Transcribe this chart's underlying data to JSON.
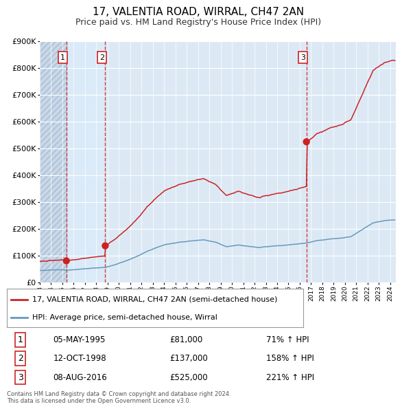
{
  "title": "17, VALENTIA ROAD, WIRRAL, CH47 2AN",
  "subtitle": "Price paid vs. HM Land Registry's House Price Index (HPI)",
  "ylim": [
    0,
    900000
  ],
  "yticks": [
    0,
    100000,
    200000,
    300000,
    400000,
    500000,
    600000,
    700000,
    800000,
    900000
  ],
  "ytick_labels": [
    "£0",
    "£100K",
    "£200K",
    "£300K",
    "£400K",
    "£500K",
    "£600K",
    "£700K",
    "£800K",
    "£900K"
  ],
  "xmin": 1993,
  "xmax": 2024.5,
  "plot_bg_color": "#dce9f5",
  "hatch_bg_color": "#c8d8ea",
  "grid_color": "#ffffff",
  "red_line_color": "#cc2222",
  "blue_line_color": "#6699bb",
  "sale_marker_color": "#cc2222",
  "vline_color": "#cc2222",
  "num_box_color": "#cc2222",
  "transactions": [
    {
      "label": "1",
      "date_num": 1995.35,
      "price": 81000,
      "date_str": "05-MAY-1995",
      "pct_str": "71% ↑ HPI",
      "price_str": "£81,000"
    },
    {
      "label": "2",
      "date_num": 1998.79,
      "price": 137000,
      "date_str": "12-OCT-1998",
      "pct_str": "158% ↑ HPI",
      "price_str": "£137,000"
    },
    {
      "label": "3",
      "date_num": 2016.59,
      "price": 525000,
      "date_str": "08-AUG-2016",
      "pct_str": "221% ↑ HPI",
      "price_str": "£525,000"
    }
  ],
  "legend_entries": [
    "17, VALENTIA ROAD, WIRRAL, CH47 2AN (semi-detached house)",
    "HPI: Average price, semi-detached house, Wirral"
  ],
  "footer_line1": "Contains HM Land Registry data © Crown copyright and database right 2024.",
  "footer_line2": "This data is licensed under the Open Government Licence v3.0."
}
